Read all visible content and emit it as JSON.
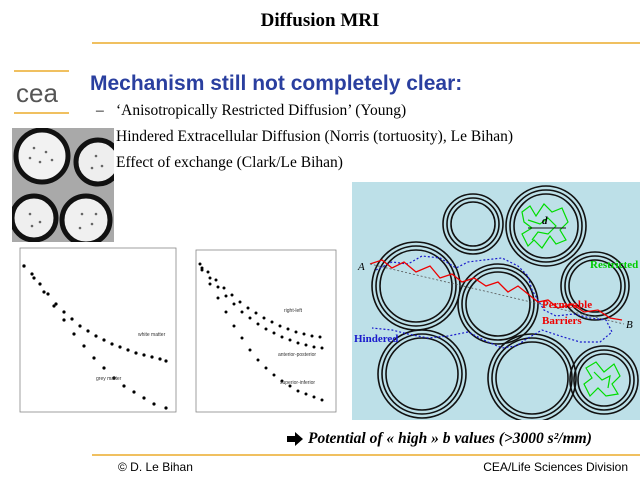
{
  "slide": {
    "title": "Diffusion MRI",
    "heading": "Mechanism still not completely clear:",
    "bullets": [
      "‘Anisotropically Restricted Diffusion’ (Young)",
      "Hindered Extracellular Diffusion (Norris (tortuosity), Le Bihan)",
      "Effect of exchange (Clark/Le Bihan)"
    ],
    "bullet_marker": "–",
    "potential_text": "Potential of « high » b values (>3000 s²/mm)",
    "footer_left": "© D. Le Bihan",
    "footer_right": "CEA/Life Sciences Division"
  },
  "logo": {
    "text": "cea"
  },
  "graph_left": {
    "curve_labels": [
      "white matter",
      "grey matter"
    ]
  },
  "graph_right": {
    "curve_labels": [
      "right-left",
      "anterior-posterior",
      "superior-inferior"
    ]
  },
  "diagram": {
    "labels": {
      "d": "d",
      "a": "A",
      "b": "B",
      "restricted": "Restricted",
      "permeable": "Permeable",
      "barriers": "Barriers",
      "hindered": "Hindered"
    }
  },
  "colors": {
    "heading": "#2a3f9f",
    "rule": "#f0c060",
    "diagram_bg": "#bde0e8",
    "restricted": "#00dd00",
    "permeable": "#ee0000",
    "hindered": "#1a1acc"
  },
  "icons": {
    "arrow": "right-arrow-icon"
  }
}
